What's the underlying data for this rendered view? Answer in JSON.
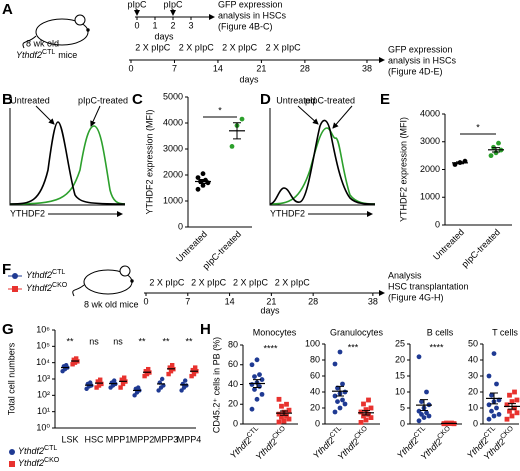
{
  "panel_labels": [
    "A",
    "B",
    "C",
    "D",
    "E",
    "F",
    "G",
    "H"
  ],
  "timeline_a": {
    "mouse_label": "8 wk old",
    "mouse_strain": "Ythdf2",
    "mouse_strain_sup": "CTL",
    "mouse_strain_tail": "mice",
    "short": {
      "injections": [
        "pIpC",
        "pIpC"
      ],
      "ticks": [
        0,
        1,
        2,
        3
      ],
      "axis_label": "days",
      "readout": [
        "GFP expression",
        "analysis in HSCs",
        "(Figure 4B-C)"
      ]
    },
    "long": {
      "injections": [
        "2 X pIpC",
        "2 X pIpC",
        "2 X pIpC",
        "2 X pIpC"
      ],
      "ticks": [
        0,
        7,
        14,
        21,
        28,
        38
      ],
      "axis_label": "days",
      "readout": [
        "GFP expression",
        "analysis in HSCs",
        "(Figure 4D-E)"
      ]
    }
  },
  "histograms": [
    {
      "labels": [
        "Untreated",
        "pIpC-treated"
      ],
      "x_label": "YTHDF2"
    },
    {
      "labels": [
        "Untreated",
        "pIpC-treated"
      ],
      "x_label": "YTHDF2"
    }
  ],
  "timeline_f": {
    "legend": [
      {
        "name": "Ythdf2",
        "sup": "CTL"
      },
      {
        "name": "Ythdf2",
        "sup": "CKO"
      }
    ],
    "mouse_label": "8 wk old mice",
    "injections": [
      "2 X pIpC",
      "2 X pIpC",
      "2 X pIpC",
      "2 X pIpC"
    ],
    "ticks": [
      0,
      7,
      14,
      21,
      28,
      38
    ],
    "axis_label": "days",
    "readout": [
      "Analysis",
      "HSC transplantation",
      "(Figure 4G-H)"
    ]
  },
  "panel_h": {
    "y_label": "CD45.2⁺ cells in PB (%)"
  },
  "chart_data": [
    {
      "type": "dotplot",
      "y_label": "YTHDF2 expression (MFI)",
      "categories": [
        "Untreated",
        "pIpC-treated"
      ],
      "colors": [
        "#000000",
        "#2ca02c"
      ],
      "points": [
        [
          1450,
          1600,
          1700,
          1750,
          1800,
          1900,
          2050
        ],
        [
          3100,
          3900,
          4150
        ]
      ],
      "means": [
        1750,
        3700
      ],
      "sems": [
        75,
        310
      ],
      "ylim": [
        0,
        5000
      ],
      "yticks": [
        0,
        1000,
        2000,
        3000,
        4000,
        5000
      ],
      "significance": "*"
    },
    {
      "type": "dotplot",
      "y_label": "YTHDF2 expression (MFI)",
      "categories": [
        "Untreated",
        "pIpC-treated"
      ],
      "colors": [
        "#000000",
        "#2ca02c"
      ],
      "points": [
        [
          2180,
          2250,
          2300
        ],
        [
          2500,
          2600,
          2700,
          2800,
          2950
        ]
      ],
      "means": [
        2240,
        2710
      ],
      "sems": [
        35,
        80
      ],
      "ylim": [
        0,
        4000
      ],
      "yticks": [
        0,
        1000,
        2000,
        3000,
        4000
      ],
      "significance": "*"
    },
    {
      "type": "grouped-dotplot",
      "y_label": "Total cell numbers",
      "log_scale": true,
      "categories": [
        "LSK",
        "HSC",
        "MPP1",
        "MPP2",
        "MPP3",
        "MPP4"
      ],
      "annotations": [
        "**",
        "ns",
        "ns",
        "**",
        "**",
        "**"
      ],
      "series": [
        {
          "name": "Ythdf2",
          "sup": "CTL",
          "color": "#1f3a93",
          "marker": "circle",
          "values": [
            [
              3000,
              4000,
              5000,
              6000,
              7000
            ],
            [
              250,
              350,
              400,
              500,
              600
            ],
            [
              300,
              400,
              500,
              600,
              800
            ],
            [
              100,
              150,
              200,
              250,
              300
            ],
            [
              200,
              300,
              400,
              600,
              1000
            ],
            [
              200,
              300,
              400,
              500,
              800
            ]
          ],
          "means": [
            5000,
            420,
            520,
            200,
            500,
            440
          ]
        },
        {
          "name": "Ythdf2",
          "sup": "CKO",
          "color": "#e8322e",
          "marker": "square",
          "values": [
            [
              8000,
              10000,
              12000,
              15000,
              18000
            ],
            [
              300,
              400,
              500,
              700,
              900
            ],
            [
              300,
              500,
              700,
              900,
              1200
            ],
            [
              1500,
              2000,
              2500,
              3000,
              4000
            ],
            [
              2000,
              3000,
              4000,
              5000,
              7000
            ],
            [
              1500,
              2000,
              3000,
              3500,
              5000
            ]
          ],
          "means": [
            12600,
            560,
            720,
            2600,
            4200,
            3000
          ]
        }
      ],
      "ylim": [
        1,
        1000000
      ],
      "yticks": [
        {
          "value": 1,
          "label": "10⁰"
        },
        {
          "value": 10,
          "label": "10¹"
        },
        {
          "value": 100,
          "label": "10²"
        },
        {
          "value": 1000,
          "label": "10³"
        },
        {
          "value": 10000,
          "label": "10⁴"
        },
        {
          "value": 100000,
          "label": "10⁵"
        },
        {
          "value": 1000000,
          "label": "10⁶"
        }
      ]
    },
    {
      "type": "dotplot",
      "title": "Monocytes",
      "categories": [
        "Ythdf2",
        "Ythdf2"
      ],
      "category_sups": [
        "CTL",
        "CKO"
      ],
      "colors": [
        "#1f3a93",
        "#e8322e"
      ],
      "markers": [
        "circle",
        "square"
      ],
      "points": [
        [
          15,
          25,
          30,
          35,
          38,
          40,
          42,
          45,
          48,
          50,
          60,
          65
        ],
        [
          2,
          3,
          5,
          7,
          8,
          10,
          12,
          14,
          18,
          20,
          25
        ]
      ],
      "means": [
        41,
        11
      ],
      "sems": [
        4,
        2.2
      ],
      "ylim": [
        0,
        80
      ],
      "yticks": [
        0,
        20,
        40,
        60,
        80
      ],
      "significance": "****"
    },
    {
      "type": "dotplot",
      "title": "Granulocytes",
      "categories": [
        "Ythdf2",
        "Ythdf2"
      ],
      "category_sups": [
        "CTL",
        "CKO"
      ],
      "colors": [
        "#1f3a93",
        "#e8322e"
      ],
      "markers": [
        "circle",
        "square"
      ],
      "points": [
        [
          15,
          20,
          25,
          28,
          30,
          35,
          38,
          40,
          45,
          50,
          75,
          90
        ],
        [
          2,
          5,
          8,
          10,
          12,
          15,
          18,
          20,
          25,
          30
        ]
      ],
      "means": [
        41,
        14
      ],
      "sems": [
        6,
        2.7
      ],
      "ylim": [
        0,
        100
      ],
      "yticks": [
        0,
        20,
        40,
        60,
        80,
        100
      ],
      "significance": "***"
    },
    {
      "type": "dotplot",
      "title": "B cells",
      "categories": [
        "Ythdf2",
        "Ythdf2"
      ],
      "category_sups": [
        "CTL",
        "CKO"
      ],
      "colors": [
        "#1f3a93",
        "#e8322e"
      ],
      "markers": [
        "circle",
        "square"
      ],
      "points": [
        [
          1,
          2,
          2.5,
          3,
          3.5,
          4,
          5,
          6,
          7,
          10,
          21
        ],
        [
          0.1,
          0.2,
          0.1,
          0.3,
          0.2,
          0.1,
          0.2,
          0.1,
          0.2,
          0.3
        ]
      ],
      "means": [
        5.9,
        0.18
      ],
      "sems": [
        1.7,
        0.03
      ],
      "ylim": [
        0,
        25
      ],
      "yticks": [
        0,
        5,
        10,
        15,
        20,
        25
      ],
      "significance": "****"
    },
    {
      "type": "dotplot",
      "title": "T cells",
      "categories": [
        "Ythdf2",
        "Ythdf2"
      ],
      "category_sups": [
        "CTL",
        "CKO"
      ],
      "colors": [
        "#1f3a93",
        "#e8322e"
      ],
      "markers": [
        "circle",
        "square"
      ],
      "points": [
        [
          3,
          5,
          6,
          8,
          10,
          12,
          14,
          15,
          18,
          25,
          30,
          44
        ],
        [
          3,
          5,
          7,
          8,
          10,
          12,
          14,
          15,
          18,
          20
        ]
      ],
      "means": [
        16,
        11
      ],
      "sems": [
        3.4,
        1.7
      ],
      "ylim": [
        0,
        50
      ],
      "yticks": [
        0,
        10,
        20,
        30,
        40,
        50
      ]
    }
  ]
}
